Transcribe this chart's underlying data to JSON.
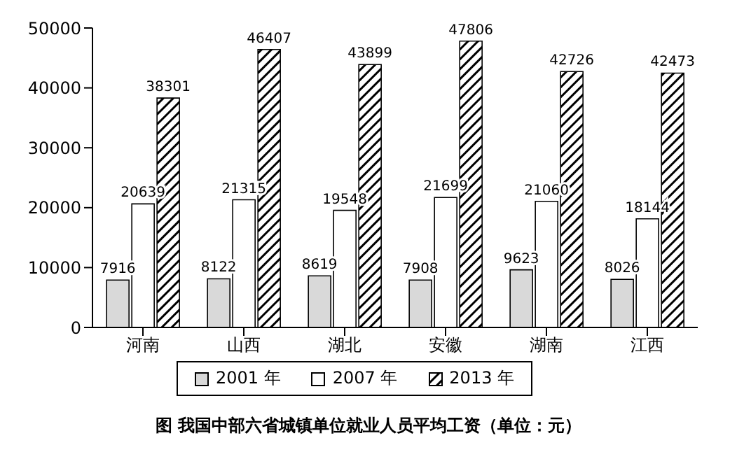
{
  "chart_data": {
    "type": "bar",
    "title": "图 我国中部六省城镇单位就业人员平均工资（单位：元）",
    "categories": [
      "河南",
      "山西",
      "湖北",
      "安徽",
      "湖南",
      "江西"
    ],
    "series": [
      {
        "name": "2001 年",
        "color": "#d9d9d9",
        "values": [
          7916,
          8122,
          8619,
          7908,
          9623,
          8026
        ]
      },
      {
        "name": "2007 年",
        "color": "#ffffff",
        "values": [
          20639,
          21315,
          19548,
          21699,
          21060,
          18144
        ]
      },
      {
        "name": "2013 年",
        "color": "#000000",
        "values": [
          38301,
          46407,
          43899,
          47806,
          42726,
          42473
        ]
      }
    ],
    "ylim": [
      0,
      50000
    ],
    "yticks": [
      0,
      10000,
      20000,
      30000,
      40000,
      50000
    ],
    "grid": false,
    "legend": "bottom",
    "data_labels": true
  }
}
